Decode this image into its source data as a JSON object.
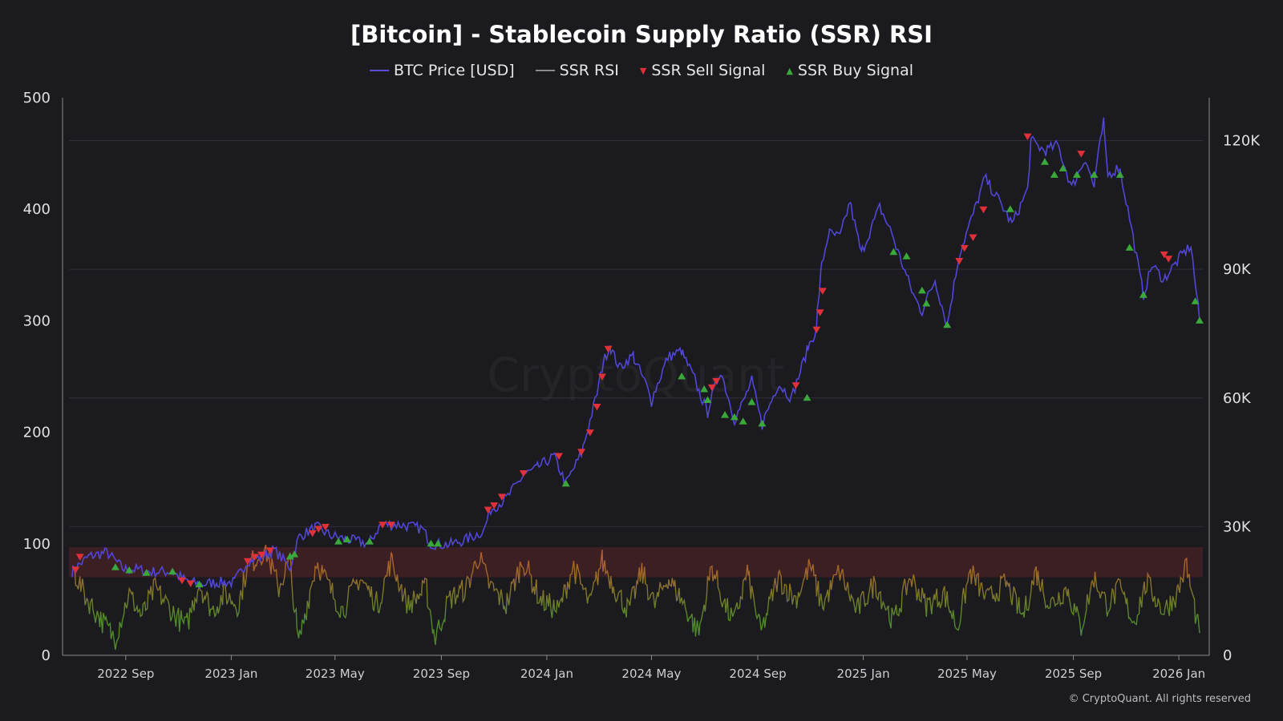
{
  "chart_data": {
    "type": "line",
    "title": "[Bitcoin] - Stablecoin Supply Ratio (SSR) RSI",
    "legend": [
      {
        "name": "BTC Price [USD]",
        "color": "#5b4fd8",
        "symbol": "line"
      },
      {
        "name": "SSR RSI",
        "color": "#8a8a8a",
        "symbol": "line"
      },
      {
        "name": "SSR Sell Signal",
        "color": "#e0303a",
        "symbol": "▼"
      },
      {
        "name": "SSR Buy Signal",
        "color": "#3aa83a",
        "symbol": "▲"
      }
    ],
    "legend_position": "top-center",
    "x_ticks": [
      "2022 Sep",
      "2023 Jan",
      "2023 May",
      "2023 Sep",
      "2024 Jan",
      "2024 May",
      "2024 Sep",
      "2025 Jan",
      "2025 May",
      "2025 Sep",
      "2026 Jan"
    ],
    "x_tick_dates": [
      "2022-09-01",
      "2023-01-01",
      "2023-05-01",
      "2023-09-01",
      "2024-01-01",
      "2024-05-01",
      "2024-09-01",
      "2025-01-01",
      "2025-05-01",
      "2025-09-01",
      "2026-01-01"
    ],
    "x_range": [
      "2022-07-01",
      "2026-01-25"
    ],
    "left_axis": {
      "ticks": [
        "0",
        "100",
        "200",
        "300",
        "400",
        "500"
      ],
      "range": [
        0,
        500
      ]
    },
    "right_axis": {
      "ticks": [
        "0",
        "30K",
        "60K",
        "90K",
        "120K"
      ],
      "range": [
        0,
        130000
      ]
    },
    "overbought_band": [
      70,
      97
    ],
    "grid": true,
    "watermark": "CryptoQuant",
    "copyright": "© CryptoQuant. All rights reserved",
    "btc_price": {
      "name": "BTC Price [USD]",
      "x": [
        "2022-07-01",
        "2022-07-20",
        "2022-08-10",
        "2022-08-30",
        "2022-09-15",
        "2022-10-01",
        "2022-10-25",
        "2022-11-09",
        "2022-11-25",
        "2022-12-15",
        "2023-01-05",
        "2023-01-20",
        "2023-02-05",
        "2023-02-20",
        "2023-03-10",
        "2023-03-20",
        "2023-04-10",
        "2023-04-25",
        "2023-05-15",
        "2023-06-10",
        "2023-06-23",
        "2023-07-15",
        "2023-08-10",
        "2023-08-20",
        "2023-09-10",
        "2023-09-30",
        "2023-10-20",
        "2023-10-28",
        "2023-11-15",
        "2023-12-05",
        "2023-12-20",
        "2024-01-10",
        "2024-01-23",
        "2024-02-10",
        "2024-02-28",
        "2024-03-05",
        "2024-03-14",
        "2024-03-25",
        "2024-04-10",
        "2024-04-25",
        "2024-05-01",
        "2024-05-20",
        "2024-06-05",
        "2024-06-20",
        "2024-07-05",
        "2024-07-20",
        "2024-08-05",
        "2024-08-15",
        "2024-08-25",
        "2024-09-06",
        "2024-09-25",
        "2024-10-10",
        "2024-10-28",
        "2024-11-08",
        "2024-11-13",
        "2024-11-22",
        "2024-12-05",
        "2024-12-17",
        "2024-12-30",
        "2025-01-20",
        "2025-02-05",
        "2025-02-28",
        "2025-03-10",
        "2025-03-25",
        "2025-04-08",
        "2025-04-22",
        "2025-05-10",
        "2025-05-22",
        "2025-06-10",
        "2025-06-22",
        "2025-07-10",
        "2025-07-14",
        "2025-07-30",
        "2025-08-14",
        "2025-08-30",
        "2025-09-15",
        "2025-09-25",
        "2025-10-06",
        "2025-10-11",
        "2025-10-25",
        "2025-11-05",
        "2025-11-21",
        "2025-12-01",
        "2025-12-15",
        "2026-01-05",
        "2026-01-15",
        "2026-01-25"
      ],
      "y": [
        19500,
        23000,
        24000,
        20000,
        20000,
        19500,
        19500,
        17500,
        16500,
        17000,
        17000,
        22000,
        23000,
        24500,
        20500,
        27500,
        30000,
        28000,
        27000,
        26000,
        30500,
        30500,
        29500,
        26000,
        25800,
        27000,
        29000,
        34000,
        36500,
        42000,
        43500,
        46500,
        40000,
        47000,
        61000,
        67000,
        72500,
        67000,
        70000,
        63000,
        59000,
        69500,
        71000,
        64500,
        56500,
        66500,
        55000,
        59000,
        64000,
        53500,
        63500,
        60000,
        71000,
        76000,
        89000,
        98500,
        97500,
        106000,
        93500,
        104500,
        97500,
        84000,
        80000,
        87500,
        77000,
        93500,
        104000,
        111500,
        105000,
        100500,
        108500,
        120000,
        117500,
        119000,
        109000,
        116000,
        109000,
        124500,
        112000,
        114000,
        102000,
        84000,
        91000,
        87500,
        93500,
        95500,
        78000
      ]
    },
    "ssr_rsi": {
      "name": "SSR RSI",
      "x": [
        "2022-07-01",
        "2022-07-15",
        "2022-08-01",
        "2022-08-20",
        "2022-09-05",
        "2022-09-20",
        "2022-10-05",
        "2022-10-25",
        "2022-11-10",
        "2022-11-25",
        "2022-12-10",
        "2022-12-25",
        "2023-01-10",
        "2023-01-20",
        "2023-02-10",
        "2023-02-25",
        "2023-03-10",
        "2023-03-20",
        "2023-04-10",
        "2023-04-25",
        "2023-05-10",
        "2023-05-30",
        "2023-06-20",
        "2023-07-05",
        "2023-07-25",
        "2023-08-15",
        "2023-08-25",
        "2023-09-10",
        "2023-09-30",
        "2023-10-15",
        "2023-10-25",
        "2023-11-15",
        "2023-12-05",
        "2023-12-25",
        "2024-01-15",
        "2024-02-01",
        "2024-02-20",
        "2024-03-05",
        "2024-03-20",
        "2024-04-05",
        "2024-04-20",
        "2024-05-05",
        "2024-05-20",
        "2024-06-05",
        "2024-06-25",
        "2024-07-10",
        "2024-07-25",
        "2024-08-05",
        "2024-08-20",
        "2024-09-05",
        "2024-09-25",
        "2024-10-15",
        "2024-11-01",
        "2024-11-15",
        "2024-12-05",
        "2024-12-25",
        "2025-01-15",
        "2025-02-05",
        "2025-02-25",
        "2025-03-15",
        "2025-04-05",
        "2025-04-20",
        "2025-05-05",
        "2025-05-25",
        "2025-06-15",
        "2025-07-05",
        "2025-07-20",
        "2025-08-05",
        "2025-08-25",
        "2025-09-10",
        "2025-09-25",
        "2025-10-10",
        "2025-10-25",
        "2025-11-10",
        "2025-11-25",
        "2025-12-15",
        "2025-12-30",
        "2026-01-10",
        "2026-01-25"
      ],
      "y": [
        80,
        55,
        35,
        15,
        55,
        35,
        60,
        40,
        25,
        65,
        40,
        55,
        45,
        80,
        95,
        60,
        85,
        10,
        85,
        60,
        40,
        70,
        45,
        85,
        45,
        60,
        15,
        50,
        60,
        90,
        65,
        45,
        85,
        50,
        40,
        80,
        45,
        85,
        60,
        40,
        75,
        45,
        70,
        50,
        20,
        80,
        45,
        30,
        75,
        20,
        70,
        50,
        80,
        45,
        75,
        40,
        65,
        30,
        70,
        45,
        55,
        25,
        75,
        50,
        65,
        35,
        75,
        45,
        60,
        25,
        70,
        45,
        60,
        30,
        65,
        40,
        55,
        80,
        20
      ]
    },
    "sell_signals": {
      "name": "SSR Sell Signal",
      "x": [
        "2022-07-05",
        "2022-07-10",
        "2022-11-05",
        "2022-11-15",
        "2023-01-20",
        "2023-01-28",
        "2023-02-05",
        "2023-02-15",
        "2023-04-05",
        "2023-04-12",
        "2023-04-20",
        "2023-06-25",
        "2023-07-05",
        "2023-10-25",
        "2023-11-01",
        "2023-11-10",
        "2023-12-05",
        "2024-01-15",
        "2024-02-10",
        "2024-02-20",
        "2024-02-28",
        "2024-03-05",
        "2024-03-12",
        "2024-07-10",
        "2024-07-15",
        "2024-10-15",
        "2024-11-08",
        "2024-11-12",
        "2024-11-15",
        "2025-04-22",
        "2025-04-28",
        "2025-05-08",
        "2025-05-20",
        "2025-07-10",
        "2025-09-10",
        "2025-12-15",
        "2025-12-20"
      ],
      "y": [
        20000,
        23000,
        17500,
        16800,
        22000,
        23000,
        23500,
        24500,
        28500,
        29500,
        30000,
        30500,
        30500,
        34000,
        35000,
        37000,
        42500,
        46500,
        47500,
        52000,
        58000,
        65000,
        71500,
        62500,
        64000,
        63000,
        76000,
        80000,
        85000,
        92000,
        95000,
        97500,
        104000,
        121000,
        117000,
        93500,
        92500
      ]
    },
    "buy_signals": {
      "name": "SSR Buy Signal",
      "x": [
        "2022-08-20",
        "2022-09-05",
        "2022-09-25",
        "2022-10-25",
        "2022-11-25",
        "2023-03-10",
        "2023-03-15",
        "2023-05-05",
        "2023-05-15",
        "2023-06-10",
        "2023-08-20",
        "2023-08-28",
        "2024-01-23",
        "2024-06-05",
        "2024-07-01",
        "2024-07-05",
        "2024-07-25",
        "2024-08-05",
        "2024-08-15",
        "2024-08-25",
        "2024-09-06",
        "2024-10-28",
        "2025-02-05",
        "2025-02-20",
        "2025-03-10",
        "2025-03-15",
        "2025-04-08",
        "2025-06-20",
        "2025-07-30",
        "2025-08-10",
        "2025-08-20",
        "2025-09-05",
        "2025-09-25",
        "2025-10-25",
        "2025-11-05",
        "2025-11-21",
        "2026-01-20",
        "2026-01-25"
      ],
      "y": [
        20500,
        19800,
        19200,
        19500,
        16500,
        23000,
        23500,
        26500,
        27000,
        26500,
        26000,
        26000,
        40000,
        65000,
        62000,
        59500,
        56000,
        55500,
        54500,
        59000,
        54000,
        60000,
        94000,
        93000,
        85000,
        82000,
        77000,
        104000,
        115000,
        112000,
        113500,
        112000,
        112000,
        112000,
        95000,
        84000,
        82500,
        78000
      ]
    }
  }
}
